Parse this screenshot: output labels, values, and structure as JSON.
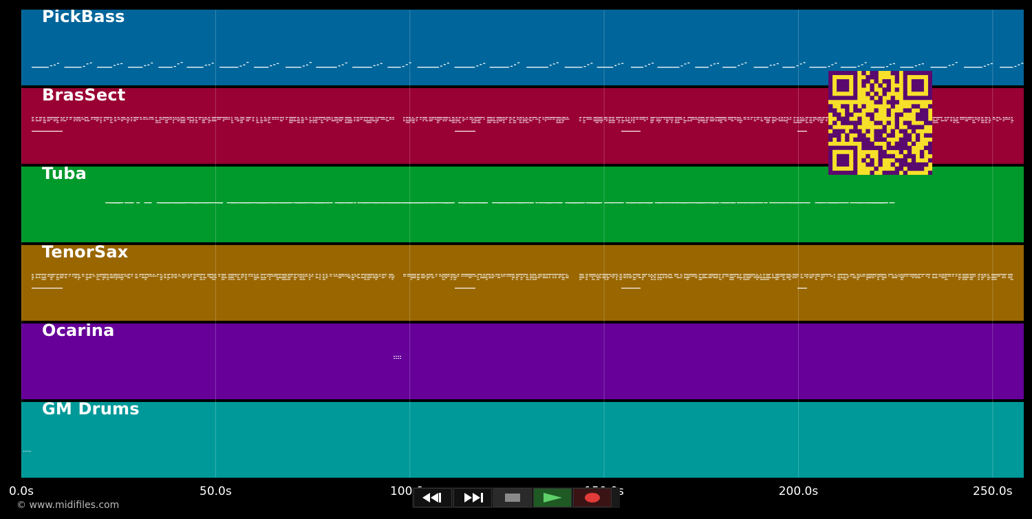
{
  "tracks": [
    {
      "name": "PickBass",
      "color": "#00659a",
      "pattern": "bass"
    },
    {
      "name": "BrasSect",
      "color": "#990033",
      "pattern": "dense"
    },
    {
      "name": "Tuba",
      "color": "#00992b",
      "pattern": "tuba"
    },
    {
      "name": "TenorSax",
      "color": "#996600",
      "pattern": "dense"
    },
    {
      "name": "Ocarina",
      "color": "#660099",
      "pattern": "ocarina"
    },
    {
      "name": "GM Drums",
      "color": "#009999",
      "pattern": "drums"
    }
  ],
  "timeline": {
    "ticks": [
      "0.0s",
      "50.0s",
      "100.0s",
      "150.0s",
      "200.0s",
      "250.0s"
    ],
    "tick_values": [
      0,
      50,
      100,
      150,
      200,
      250
    ],
    "max_seconds": 258
  },
  "copyright": "© www.midifiles.com",
  "transport": [
    {
      "name": "rewind-button",
      "icon": "rewind-icon",
      "color": "#111111"
    },
    {
      "name": "fast-forward-button",
      "icon": "fast-forward-icon",
      "color": "#111111"
    },
    {
      "name": "stop-button",
      "icon": "stop-icon",
      "color": "#2a2a2a"
    },
    {
      "name": "play-button",
      "icon": "play-icon",
      "color": "#1f5a25"
    },
    {
      "name": "record-button",
      "icon": "record-icon",
      "color": "#3a1414"
    }
  ],
  "qr_color": "#5a0a6e",
  "qr_bg": "#f7e02a"
}
